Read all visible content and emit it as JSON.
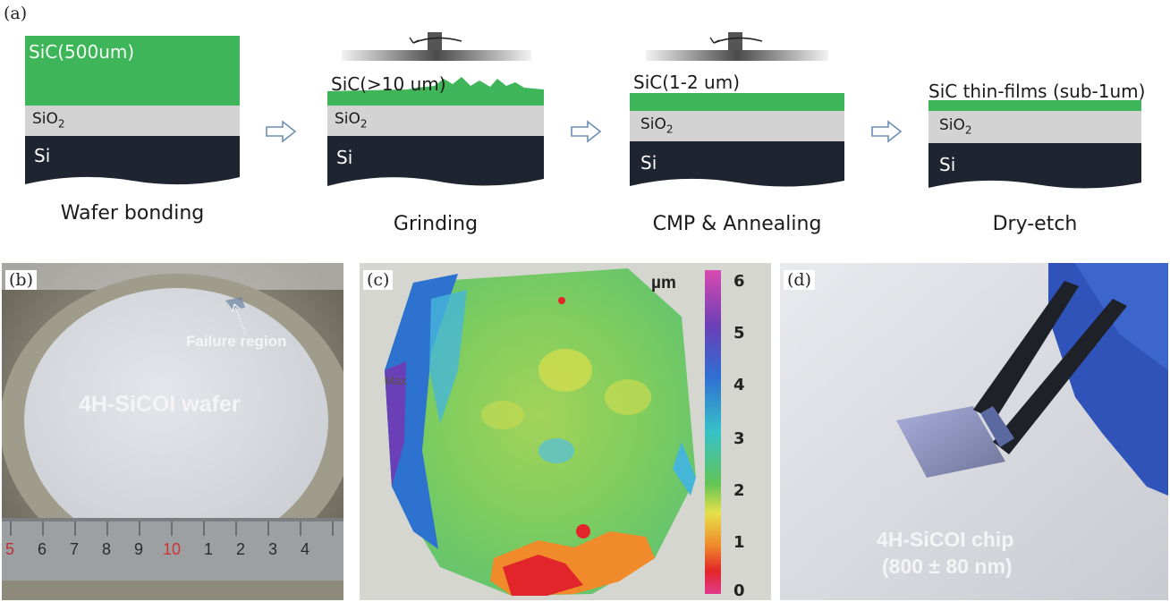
{
  "panel_a": {
    "letter": "(a)",
    "steps": [
      {
        "caption": "Wafer bonding",
        "sic_label": "SiC(500um)",
        "sio2_label": "SiO",
        "sio2_sub": "2",
        "si_label": "Si"
      },
      {
        "caption": "Grinding",
        "sic_label": "SiC(>10 um)",
        "sio2_label": "SiO",
        "sio2_sub": "2",
        "si_label": "Si"
      },
      {
        "caption": "CMP & Annealing",
        "sic_label": "SiC(1-2 um)",
        "sio2_label": "SiO",
        "sio2_sub": "2",
        "si_label": "Si"
      },
      {
        "caption": "Dry-etch",
        "sic_label": "SiC thin-films (sub-1um)",
        "sio2_label": "SiO",
        "sio2_sub": "2",
        "si_label": "Si"
      }
    ],
    "colors": {
      "sic": "#3fb55a",
      "sio2": "#d3d3d3",
      "si": "#1f2431",
      "arrow": "#6a8fb5"
    }
  },
  "panel_b": {
    "letter": "(b)",
    "wafer_label": "4H-SiCOI wafer",
    "annotation": "Failure region",
    "ruler_numbers": [
      "5",
      "6",
      "7",
      "8",
      "9",
      "10",
      "1",
      "2",
      "3",
      "4"
    ]
  },
  "panel_c": {
    "letter": "(c)",
    "colorbar_unit": "µm",
    "colorbar_ticks": [
      "6",
      "5",
      "4",
      "3",
      "2",
      "1",
      "0"
    ],
    "map_mark": "Max"
  },
  "panel_d": {
    "letter": "(d)",
    "chip_label_line1": "4H-SiCOI chip",
    "chip_label_line2": "(800 ± 80 nm)"
  }
}
